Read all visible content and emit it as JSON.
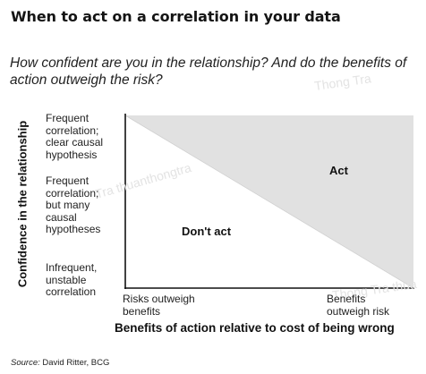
{
  "title": "When to act on a correlation in your data",
  "subtitle": "How confident are you in the relationship? And do the benefits of action outweigh the risk?",
  "y_axis": {
    "title": "Confidence in the relationship",
    "labels": [
      "Frequent\ncorrelation;\nclear causal\nhypothesis",
      "Frequent\ncorrelation;\nbut many\ncausal\nhypotheses",
      "Infrequent,\nunstable\ncorrelation"
    ]
  },
  "x_axis": {
    "title": "Benefits of action relative to cost of being wrong",
    "labels": [
      "Risks outweigh\nbenefits",
      "Benefits\noutweigh risk"
    ]
  },
  "regions": {
    "act": "Act",
    "dont_act": "Don't act"
  },
  "source": {
    "prefix": "Source:",
    "text": "David Ritter, BCG"
  },
  "watermarks": [
    "Thong Tra",
    "Tra thuanthongtra",
    "Thong Tra thua"
  ],
  "colors": {
    "act_fill": "#e1e1e1",
    "axis": "#111111"
  }
}
